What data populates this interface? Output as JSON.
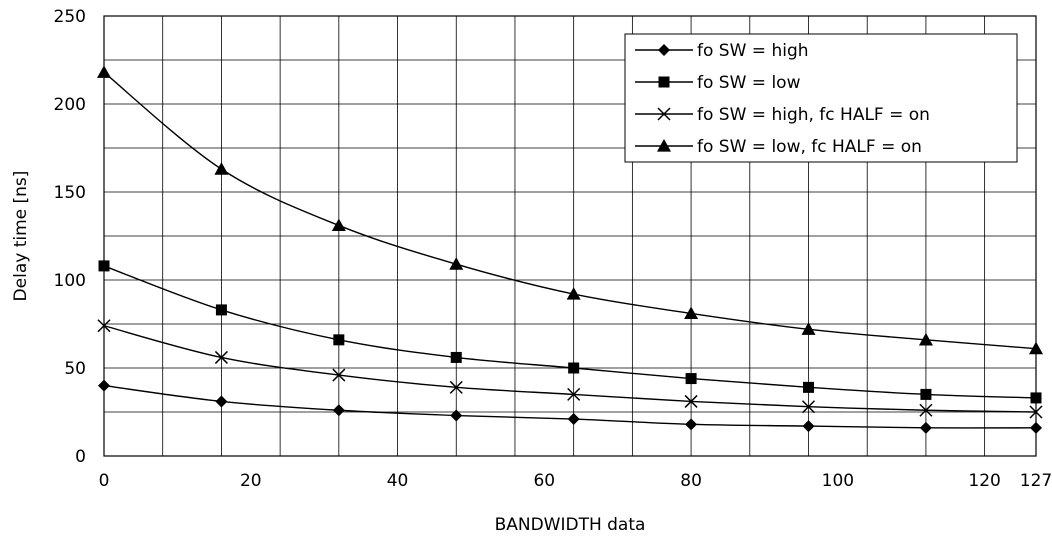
{
  "chart_data": {
    "type": "line",
    "title": "",
    "xlabel": "BANDWIDTH data",
    "ylabel": "Delay time [ns]",
    "xlim": [
      0,
      127
    ],
    "ylim": [
      0,
      250
    ],
    "x_ticks": [
      0,
      20,
      40,
      60,
      80,
      100,
      120,
      127
    ],
    "y_ticks": [
      0,
      50,
      100,
      150,
      200,
      250
    ],
    "x_gridlines": [
      0,
      8,
      16,
      24,
      32,
      40,
      48,
      56,
      64,
      72,
      80,
      88,
      96,
      104,
      112,
      120,
      127
    ],
    "y_gridlines": [
      0,
      25,
      50,
      75,
      100,
      125,
      150,
      175,
      200,
      225,
      250
    ],
    "grid": true,
    "legend_position": "top-right",
    "series": [
      {
        "name": "fo SW = high",
        "marker": "diamond",
        "color": "#000000",
        "x": [
          0,
          16,
          32,
          48,
          64,
          80,
          96,
          112,
          127
        ],
        "y": [
          40,
          31,
          26,
          23,
          21,
          18,
          17,
          16,
          16
        ]
      },
      {
        "name": "fo SW = low",
        "marker": "square",
        "color": "#000000",
        "x": [
          0,
          16,
          32,
          48,
          64,
          80,
          96,
          112,
          127
        ],
        "y": [
          108,
          83,
          66,
          56,
          50,
          44,
          39,
          35,
          33
        ]
      },
      {
        "name": "fo SW = high, fc HALF = on",
        "marker": "x",
        "color": "#000000",
        "x": [
          0,
          16,
          32,
          48,
          64,
          80,
          96,
          112,
          127
        ],
        "y": [
          74,
          56,
          46,
          39,
          35,
          31,
          28,
          26,
          25
        ]
      },
      {
        "name": "fo SW = low, fc HALF = on",
        "marker": "triangle",
        "color": "#000000",
        "x": [
          0,
          16,
          32,
          48,
          64,
          80,
          96,
          112,
          127
        ],
        "y": [
          218,
          163,
          131,
          109,
          92,
          81,
          72,
          66,
          61
        ]
      }
    ]
  }
}
